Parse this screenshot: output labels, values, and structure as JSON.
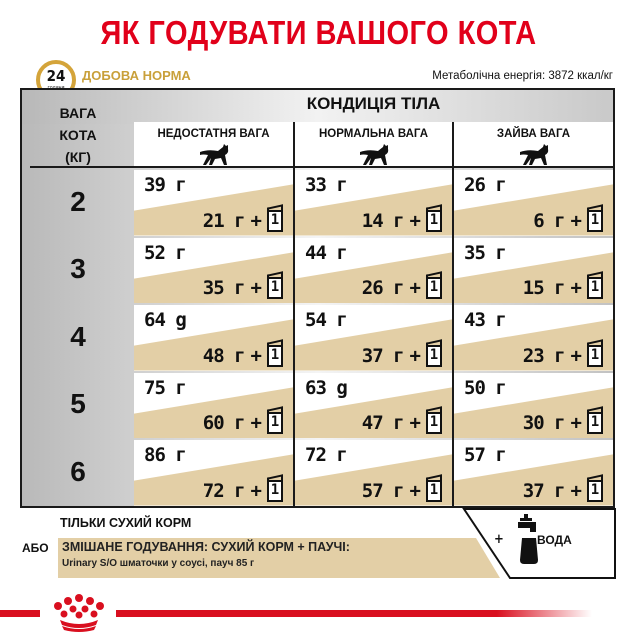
{
  "title": "ЯК ГОДУВАТИ ВАШОГО КОТА",
  "clock": {
    "number": "24",
    "sub": "години"
  },
  "daily_norm": "ДОБОВА НОРМА",
  "energy": "Метаболічна енергія: 3872 ккал/кг",
  "table": {
    "weight_header": [
      "ВАГА",
      "КОТА",
      "(КГ)"
    ],
    "condition_header": "КОНДИЦІЯ ТІЛА",
    "columns": [
      "НЕДОСТАТНЯ ВАГА",
      "НОРМАЛЬНА ВАГА",
      "ЗАЙВА ВАГА"
    ],
    "pouch_count": "1",
    "rows": [
      {
        "weight": "2",
        "cells": [
          {
            "dry": "39 г",
            "mixed": "21 г"
          },
          {
            "dry": "33 г",
            "mixed": "14 г"
          },
          {
            "dry": "26 г",
            "mixed": "6 г"
          }
        ]
      },
      {
        "weight": "3",
        "cells": [
          {
            "dry": "52 г",
            "mixed": "35 г"
          },
          {
            "dry": "44 г",
            "mixed": "26 г"
          },
          {
            "dry": "35 г",
            "mixed": "15 г"
          }
        ]
      },
      {
        "weight": "4",
        "cells": [
          {
            "dry": "64 g",
            "mixed": "48 г"
          },
          {
            "dry": "54 г",
            "mixed": "37 г"
          },
          {
            "dry": "43 г",
            "mixed": "23 г"
          }
        ]
      },
      {
        "weight": "5",
        "cells": [
          {
            "dry": "75 г",
            "mixed": "60 г"
          },
          {
            "dry": "63 g",
            "mixed": "47 г"
          },
          {
            "dry": "50 г",
            "mixed": "30 г"
          }
        ]
      },
      {
        "weight": "6",
        "cells": [
          {
            "dry": "86 г",
            "mixed": "72 г"
          },
          {
            "dry": "72 г",
            "mixed": "57 г"
          },
          {
            "dry": "57 г",
            "mixed": "37 г"
          }
        ]
      }
    ]
  },
  "legend": {
    "dry_only": "ТІЛЬКИ СУХИЙ КОРМ",
    "or": "АБО",
    "mixed": "ЗМІШАНЕ ГОДУВАННЯ: СУХИЙ КОРМ + ПАУЧІ:",
    "mixed_sub": "Urinary S/O шматочки у соусі, пауч 85 г",
    "plus": "+",
    "water": "ВОДА"
  },
  "colors": {
    "brand_red": "#e1001a",
    "tan": "#e3cfa6",
    "gold": "#d4a43a"
  }
}
